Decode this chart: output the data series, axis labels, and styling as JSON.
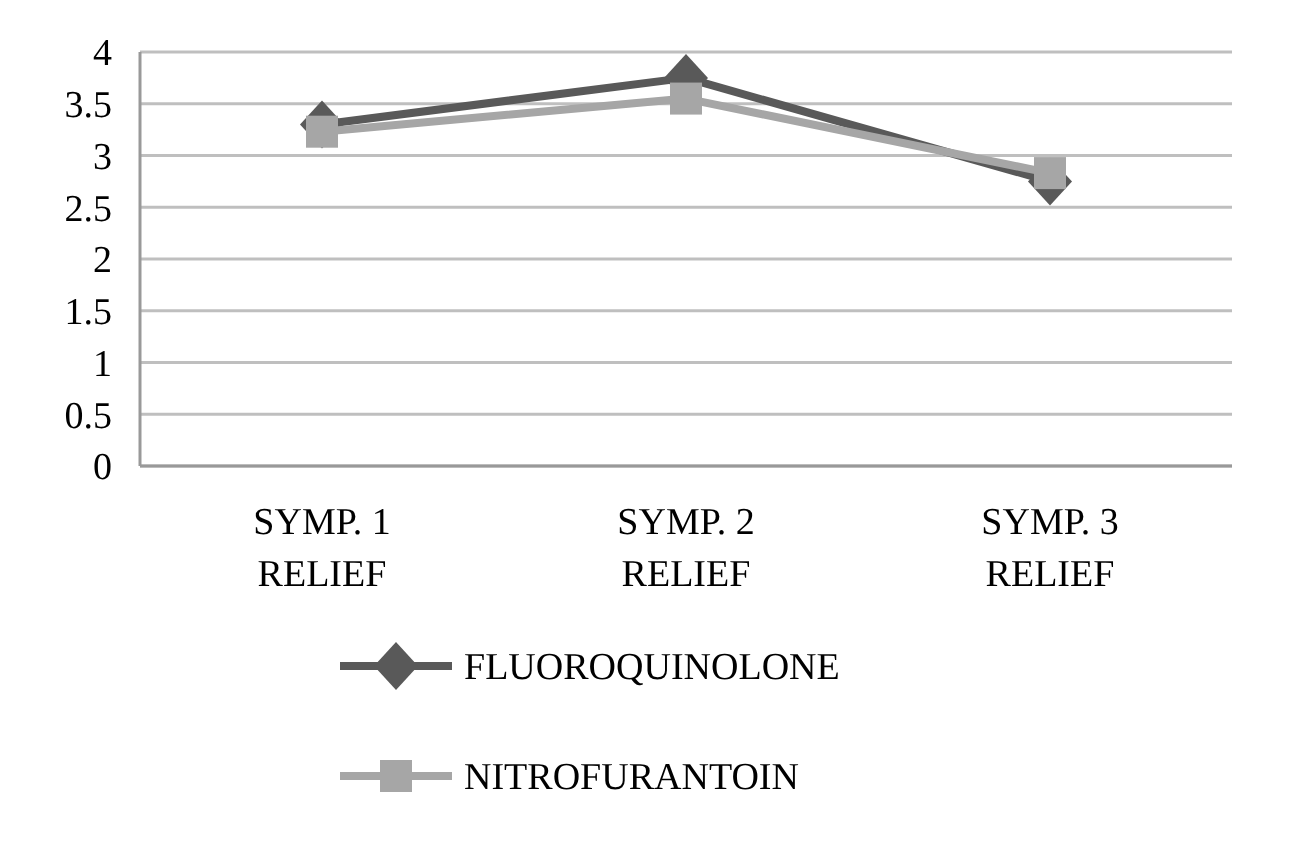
{
  "chart_data": {
    "type": "line",
    "categories": [
      "SYMP. 1\nRELIEF",
      "SYMP. 2\nRELIEF",
      "SYMP. 3\nRELIEF"
    ],
    "series": [
      {
        "name": "FLUOROQUINOLONE",
        "color": "#595959",
        "values": [
          3.3,
          3.75,
          2.75
        ],
        "marker": "diamond"
      },
      {
        "name": "NITROFURANTOIN",
        "color": "#a6a6a6",
        "values": [
          3.23,
          3.55,
          2.83
        ],
        "marker": "square"
      }
    ],
    "ylim": [
      0,
      4
    ],
    "yticks": [
      0,
      {
        "value": 0.5,
        "label": "0.5"
      },
      1,
      {
        "value": 1.5,
        "label": "1.5"
      },
      2,
      {
        "value": 2.5,
        "label": "2.5"
      },
      3,
      {
        "value": 3.5,
        "label": "3.5"
      },
      4
    ],
    "grid": "y",
    "legend": "bottom"
  }
}
